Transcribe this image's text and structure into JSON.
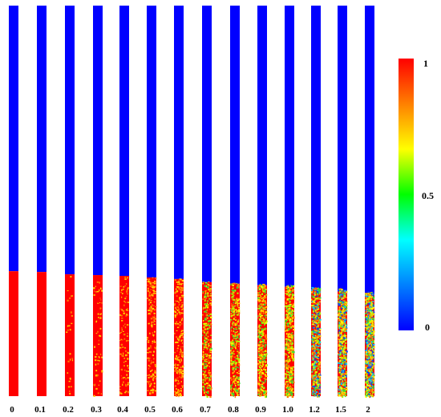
{
  "columns": [
    {
      "label": "0",
      "interface": 0.68,
      "mixing": 0.0
    },
    {
      "label": "0.1",
      "interface": 0.682,
      "mixing": 0.0
    },
    {
      "label": "0.2",
      "interface": 0.688,
      "mixing": 0.03
    },
    {
      "label": "0.3",
      "interface": 0.69,
      "mixing": 0.07
    },
    {
      "label": "0.4",
      "interface": 0.692,
      "mixing": 0.12
    },
    {
      "label": "0.5",
      "interface": 0.696,
      "mixing": 0.2
    },
    {
      "label": "0.6",
      "interface": 0.7,
      "mixing": 0.26
    },
    {
      "label": "0.7",
      "interface": 0.708,
      "mixing": 0.33
    },
    {
      "label": "0.8",
      "interface": 0.712,
      "mixing": 0.42
    },
    {
      "label": "0.9",
      "interface": 0.716,
      "mixing": 0.5
    },
    {
      "label": "1.0",
      "interface": 0.72,
      "mixing": 0.58
    },
    {
      "label": "1.2",
      "interface": 0.726,
      "mixing": 0.68
    },
    {
      "label": "1.5",
      "interface": 0.73,
      "mixing": 0.78
    },
    {
      "label": "2",
      "interface": 0.74,
      "mixing": 0.92
    }
  ],
  "colorbar": {
    "tick_labels": [
      "1",
      "0.5",
      "0"
    ],
    "tick_values": [
      1,
      0.5,
      0
    ],
    "stops": [
      "#0000ff",
      "#0080ff",
      "#00ffff",
      "#00ff00",
      "#ffff00",
      "#ff8000",
      "#ff0000"
    ]
  },
  "colors": {
    "upper_phase": "#0000ff",
    "lower_phase": "#ff0000",
    "mix_palette": [
      "#ff7a00",
      "#ffd000",
      "#ffff00",
      "#aaff00",
      "#33dd33",
      "#00ccff",
      "#0044ff"
    ]
  }
}
